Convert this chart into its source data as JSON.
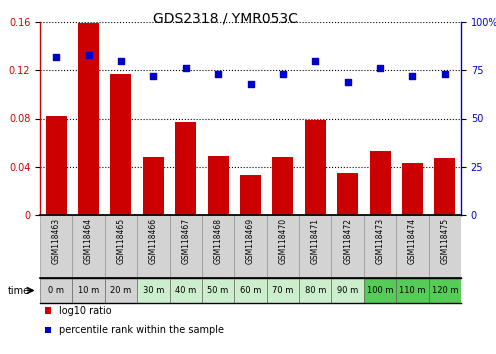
{
  "title": "GDS2318 / YMR053C",
  "categories": [
    "GSM118463",
    "GSM118464",
    "GSM118465",
    "GSM118466",
    "GSM118467",
    "GSM118468",
    "GSM118469",
    "GSM118470",
    "GSM118471",
    "GSM118472",
    "GSM118473",
    "GSM118474",
    "GSM118475"
  ],
  "time_labels": [
    "0 m",
    "10 m",
    "20 m",
    "30 m",
    "40 m",
    "50 m",
    "60 m",
    "70 m",
    "80 m",
    "90 m",
    "100 m",
    "110 m",
    "120 m"
  ],
  "log10_ratio": [
    0.082,
    0.159,
    0.117,
    0.048,
    0.077,
    0.049,
    0.033,
    0.048,
    0.079,
    0.035,
    0.053,
    0.043,
    0.047
  ],
  "percentile_rank": [
    82,
    83,
    80,
    72,
    76,
    73,
    68,
    73,
    80,
    69,
    76,
    72,
    73
  ],
  "ylim_left": [
    0,
    0.16
  ],
  "ylim_right": [
    0,
    100
  ],
  "yticks_left": [
    0,
    0.04,
    0.08,
    0.12,
    0.16
  ],
  "yticks_right": [
    0,
    25,
    50,
    75,
    100
  ],
  "bar_color": "#cc0000",
  "dot_color": "#0000cc",
  "background_color": "#ffffff",
  "gsm_row_color": "#d3d3d3",
  "time_row_colors": [
    "#d3d3d3",
    "#d3d3d3",
    "#d3d3d3",
    "#cceecc",
    "#cceecc",
    "#cceecc",
    "#cceecc",
    "#cceecc",
    "#cceecc",
    "#cceecc",
    "#55cc55",
    "#55cc55",
    "#55cc55"
  ],
  "legend_bar_color": "#cc0000",
  "legend_dot_color": "#0000cc",
  "title_fontsize": 10,
  "tick_fontsize": 7,
  "gsm_fontsize": 5.5,
  "time_fontsize": 6,
  "legend_fontsize": 7
}
